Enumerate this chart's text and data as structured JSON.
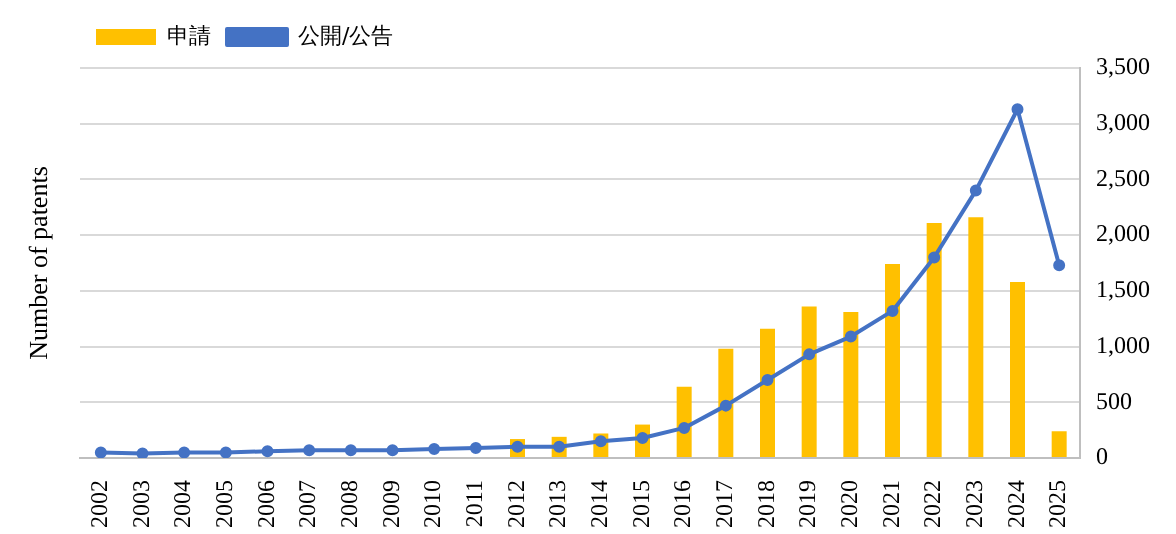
{
  "chart_data": {
    "type": "bar",
    "ylabel": "Number of patents",
    "categories": [
      "2002",
      "2003",
      "2004",
      "2005",
      "2006",
      "2007",
      "2008",
      "2009",
      "2010",
      "2011",
      "2012",
      "2013",
      "2014",
      "2015",
      "2016",
      "2017",
      "2018",
      "2019",
      "2020",
      "2021",
      "2022",
      "2023",
      "2024",
      "2025"
    ],
    "series": [
      {
        "name": "申請",
        "color": "#ffc000",
        "values": [
          null,
          null,
          null,
          null,
          null,
          null,
          null,
          null,
          null,
          null,
          170,
          190,
          220,
          300,
          640,
          980,
          1160,
          1360,
          1310,
          1740,
          2110,
          2160,
          1580,
          240
        ]
      },
      {
        "name": "公開/公告",
        "type": "line",
        "color": "#4472c4",
        "values": [
          50,
          40,
          50,
          50,
          60,
          70,
          70,
          70,
          80,
          90,
          100,
          100,
          150,
          180,
          270,
          470,
          700,
          930,
          1090,
          1320,
          1800,
          2400,
          3130,
          1730
        ]
      }
    ],
    "ylim": [
      0,
      3500
    ],
    "yticks": [
      0,
      500,
      {
        "value": 1000,
        "label": "1,000"
      },
      {
        "value": 1500,
        "label": "1,500"
      },
      {
        "value": 2000,
        "label": "2,000"
      },
      {
        "value": 2500,
        "label": "2,500"
      },
      {
        "value": 3000,
        "label": "3,000"
      },
      {
        "value": 3500,
        "label": "3,500"
      }
    ],
    "grid": "y",
    "legend": "top left",
    "marker": "circle"
  }
}
